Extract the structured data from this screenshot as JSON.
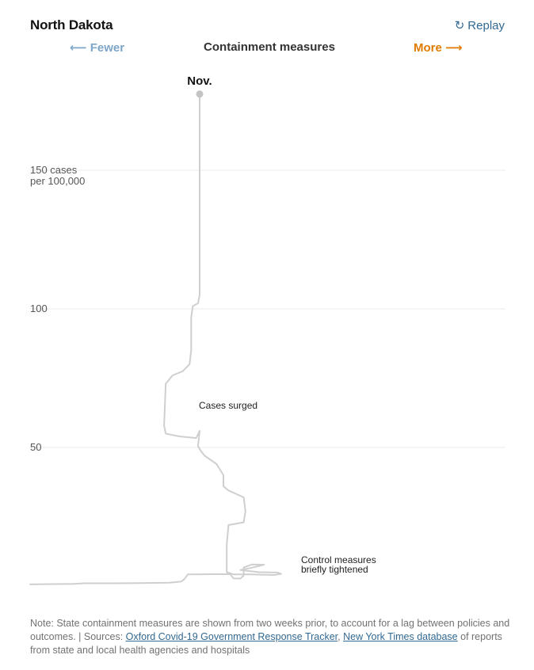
{
  "header": {
    "title": "North Dakota",
    "replay_label": "Replay",
    "fewer_label": "Fewer",
    "more_label": "More",
    "axis_title": "Containment measures"
  },
  "colors": {
    "fewer": "#7ea6c8",
    "more": "#e07b00",
    "line": "#cfcfcf",
    "link": "#326891"
  },
  "icons": {
    "replay": "replay-icon",
    "fewer_arrow": "left-arrow",
    "more_arrow": "right-arrow"
  },
  "chart_data": {
    "type": "line",
    "title": "",
    "xlabel": "Containment measures",
    "ylabel": "cases per 100,000",
    "ylim": [
      0,
      180
    ],
    "grid": true,
    "y_ticks": [
      {
        "value": 150,
        "label": "150 cases",
        "label2": "per 100,000"
      },
      {
        "value": 100,
        "label": "100"
      },
      {
        "value": 50,
        "label": "50"
      }
    ],
    "end_label": "Nov.",
    "annotations": [
      {
        "text": "Cases surged"
      },
      {
        "text": "Control measures",
        "text2": "briefly tightened"
      }
    ],
    "series": [
      {
        "points": [
          [
            0,
            0.6
          ],
          [
            14,
            0.7
          ],
          [
            26,
            0.8
          ],
          [
            32,
            1.0
          ],
          [
            52,
            1.0
          ],
          [
            70,
            1.1
          ],
          [
            82,
            1.2
          ],
          [
            89,
            1.6
          ],
          [
            91,
            2.5
          ],
          [
            93,
            4.2
          ],
          [
            106,
            4.3
          ],
          [
            118,
            4.3
          ],
          [
            120,
            2.8
          ],
          [
            124,
            2.7
          ],
          [
            126,
            3.8
          ],
          [
            126,
            6.7
          ],
          [
            131,
            7.8
          ],
          [
            138,
            7.7
          ],
          [
            130,
            6.5
          ],
          [
            124,
            5.8
          ],
          [
            135,
            5.0
          ],
          [
            146,
            4.9
          ],
          [
            148,
            4.4
          ],
          [
            144,
            4.0
          ],
          [
            136,
            4.1
          ],
          [
            130,
            4.2
          ],
          [
            120,
            4.2
          ],
          [
            116,
            5.0
          ],
          [
            116,
            15
          ],
          [
            117,
            22
          ],
          [
            126,
            23
          ],
          [
            127,
            27
          ],
          [
            126,
            32
          ],
          [
            117,
            34.5
          ],
          [
            116,
            35
          ],
          [
            114,
            36
          ],
          [
            114,
            40
          ],
          [
            110,
            44
          ],
          [
            103,
            47
          ],
          [
            101,
            48.5
          ],
          [
            99,
            50.5
          ],
          [
            100,
            56
          ],
          [
            98,
            53.4
          ],
          [
            88,
            54
          ],
          [
            84,
            54.5
          ],
          [
            80,
            55
          ],
          [
            79,
            58
          ],
          [
            80,
            73
          ],
          [
            84,
            76
          ],
          [
            90,
            77.5
          ],
          [
            94,
            80
          ],
          [
            95,
            85
          ],
          [
            95,
            97
          ],
          [
            96,
            101
          ],
          [
            99,
            102
          ],
          [
            100,
            105
          ],
          [
            100,
            130
          ],
          [
            100,
            160
          ],
          [
            100,
            177.5
          ]
        ]
      }
    ]
  },
  "note": {
    "prefix": "Note: State containment measures are shown from two weeks prior, to account for a lag between policies and outcomes. | Sources: ",
    "link1": "Oxford Covid-19 Government Response Tracker",
    "sep": ", ",
    "link2": "New York Times database",
    "suffix": " of reports from state and local health agencies and hospitals"
  }
}
